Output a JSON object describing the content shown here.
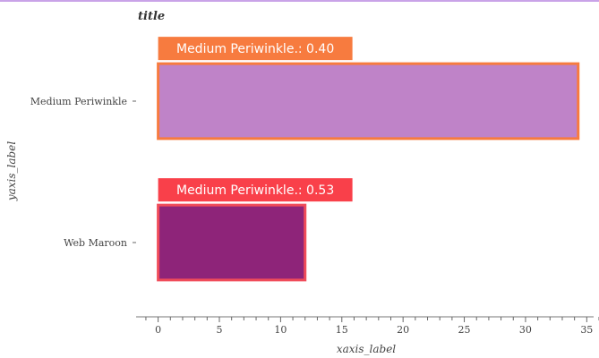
{
  "chart_data": {
    "type": "bar",
    "orientation": "horizontal",
    "title": "title",
    "xlabel": "xaxis_label",
    "ylabel": "yaxis_label",
    "categories": [
      "Medium Periwinkle",
      "Web Maroon"
    ],
    "values": [
      34.3,
      12
    ],
    "xlim": [
      -1.8,
      36
    ],
    "xticks": [
      0,
      5,
      10,
      15,
      20,
      25,
      30,
      35
    ],
    "bar_colors": [
      "#bf83c8",
      "#8e2479"
    ],
    "bar_border_colors": [
      "#f77b3f",
      "#f04c5a"
    ],
    "annotations": [
      {
        "text": "Medium Periwinkle.: 0.40",
        "color": "#f77b3f"
      },
      {
        "text": "Medium Periwinkle.: 0.53",
        "color": "#f9404a"
      }
    ]
  }
}
